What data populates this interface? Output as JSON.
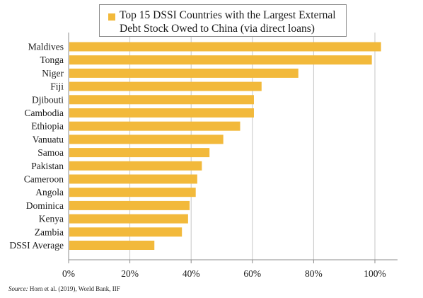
{
  "legend": {
    "label": "Top 15 DSSI Countries with the Largest External Debt Stock Owed to China (via direct loans)",
    "color": "#f2b93b"
  },
  "source": {
    "prefix": "Source:",
    "text": "Horn et al. (2019), World Bank, IIF"
  },
  "chart_data": {
    "type": "bar",
    "orientation": "horizontal",
    "categories": [
      "Maldives",
      "Tonga",
      "Niger",
      "Fiji",
      "Djibouti",
      "Cambodia",
      "Ethiopia",
      "Vanuatu",
      "Samoa",
      "Pakistan",
      "Cameroon",
      "Angola",
      "Dominica",
      "Kenya",
      "Zambia",
      "DSSI Average"
    ],
    "values": [
      102,
      99,
      75,
      63,
      60.5,
      60.5,
      56,
      50.5,
      46,
      43.5,
      42,
      41.5,
      39.5,
      39,
      37,
      28
    ],
    "bar_color": "#f2b93b",
    "xlim": [
      0,
      100
    ],
    "xticks": [
      0,
      20,
      40,
      60,
      80,
      100
    ],
    "tick_format": "percent",
    "grid": true,
    "legend_position": "top"
  }
}
